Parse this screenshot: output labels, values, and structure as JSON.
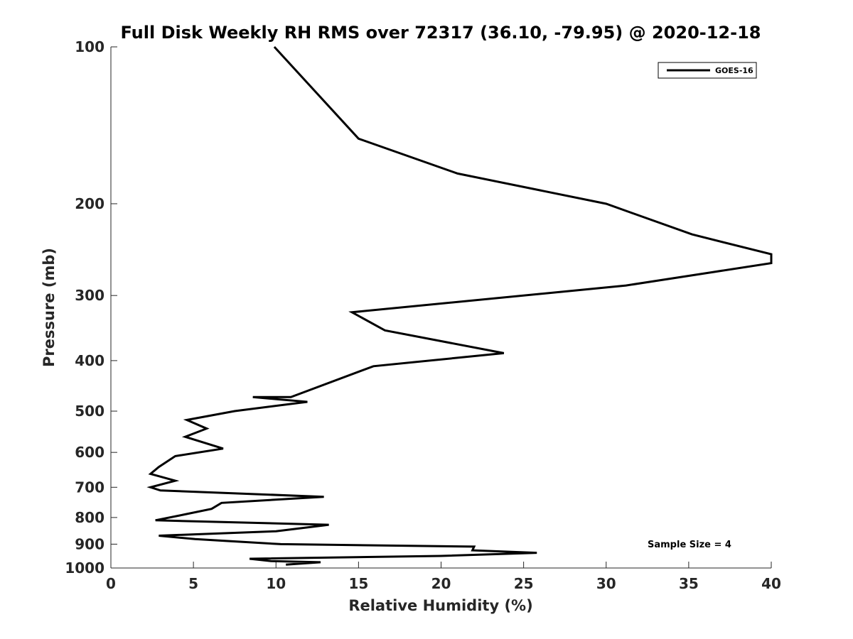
{
  "chart_data": {
    "type": "line",
    "title": "Full Disk Weekly RH RMS over 72317 (36.10, -79.95) @ 2020-12-18",
    "xlabel": "Relative Humidity (%)",
    "ylabel": "Pressure (mb)",
    "xlim": [
      0,
      40
    ],
    "ylim": [
      100,
      1000
    ],
    "y_scale": "log",
    "y_reversed": true,
    "xticks": [
      0,
      5,
      10,
      15,
      20,
      25,
      30,
      35,
      40
    ],
    "yticks": [
      100,
      200,
      300,
      400,
      500,
      600,
      700,
      800,
      900,
      1000
    ],
    "grid": false,
    "legend_position": "top-right",
    "annotation": "Sample Size = 4",
    "series": [
      {
        "name": "GOES-16",
        "color": "#000000",
        "points": [
          [
            9.9,
            100
          ],
          [
            15.0,
            150
          ],
          [
            21.0,
            175
          ],
          [
            30.0,
            200
          ],
          [
            35.2,
            229
          ],
          [
            40.0,
            250
          ],
          [
            40.0,
            260
          ],
          [
            31.2,
            287
          ],
          [
            14.6,
            323
          ],
          [
            16.6,
            350
          ],
          [
            23.8,
            387
          ],
          [
            15.9,
            410
          ],
          [
            10.9,
            470
          ],
          [
            8.6,
            470
          ],
          [
            11.9,
            480
          ],
          [
            7.5,
            500
          ],
          [
            4.6,
            520
          ],
          [
            5.8,
            540
          ],
          [
            4.5,
            560
          ],
          [
            6.8,
            590
          ],
          [
            3.9,
            610
          ],
          [
            2.9,
            640
          ],
          [
            2.4,
            660
          ],
          [
            3.9,
            680
          ],
          [
            2.4,
            700
          ],
          [
            3.0,
            710
          ],
          [
            12.9,
            730
          ],
          [
            6.7,
            750
          ],
          [
            6.1,
            770
          ],
          [
            4.4,
            790
          ],
          [
            2.7,
            810
          ],
          [
            13.2,
            826
          ],
          [
            10.0,
            850
          ],
          [
            2.9,
            867
          ],
          [
            5.1,
            880
          ],
          [
            10.3,
            900
          ],
          [
            22.0,
            910
          ],
          [
            21.9,
            925
          ],
          [
            25.8,
            935
          ],
          [
            20.0,
            948
          ],
          [
            8.4,
            960
          ],
          [
            9.7,
            970
          ],
          [
            12.7,
            975
          ],
          [
            10.6,
            985
          ]
        ]
      }
    ]
  }
}
